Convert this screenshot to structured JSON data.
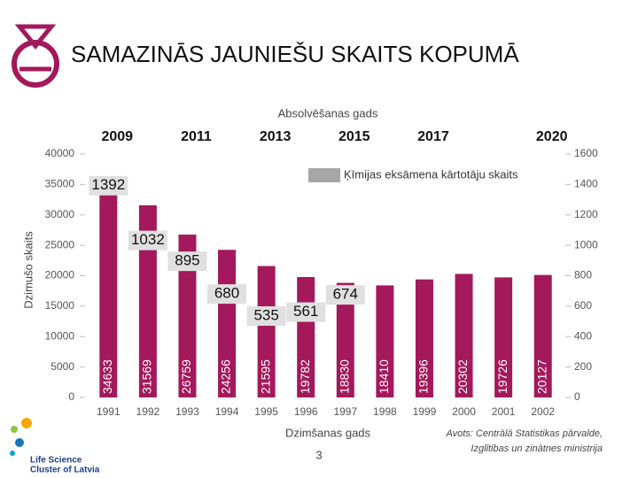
{
  "chart_data": {
    "type": "bar",
    "title": "SAMAZINĀS JAUNIEŠU SKAITS KOPUMĀ",
    "ylabel": "Dzimušo skaits",
    "xlabel": "Dzimšanas gads",
    "x2label": "Absolvēšanas gads",
    "categories": [
      "1991",
      "1992",
      "1993",
      "1994",
      "1995",
      "1996",
      "1997",
      "1998",
      "1999",
      "2000",
      "2001",
      "2002"
    ],
    "top_categories": [
      "2009",
      null,
      "2011",
      null,
      "2013",
      null,
      "2015",
      null,
      "2017",
      null,
      null,
      "2020"
    ],
    "series": [
      {
        "color": "#a3195b",
        "values": [
          34633,
          31569,
          26759,
          24256,
          21595,
          19782,
          18830,
          18410,
          19396,
          20302,
          19726,
          20127
        ]
      },
      {
        "name": "Ķīmijas eksāmena kārtotāju skaits",
        "axis": "y2",
        "color": "#a6a6a6",
        "values": [
          1392,
          1032,
          895,
          680,
          535,
          561,
          674,
          null,
          null,
          null,
          null,
          null
        ]
      }
    ],
    "ylim": [
      0,
      40000
    ],
    "yticks": [
      0,
      5000,
      10000,
      15000,
      20000,
      25000,
      30000,
      35000,
      40000
    ],
    "y2lim": [
      0,
      1600
    ],
    "y2ticks": [
      0,
      200,
      400,
      600,
      800,
      1000,
      1200,
      1400,
      1600
    ],
    "source": [
      "Avots: Centrālā Statistikas pārvalde,",
      "Izglītības un zinātnes ministrija"
    ]
  },
  "page_number": "3",
  "logo_text": [
    "Life Science",
    "Cluster of Latvia"
  ]
}
